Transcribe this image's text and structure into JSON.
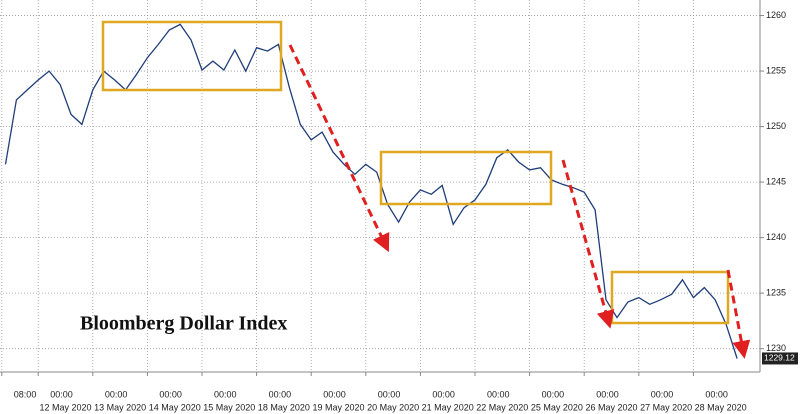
{
  "chart_data": {
    "type": "line",
    "title": "Bloomberg Dollar Index",
    "color": "#1f3d7a",
    "grid": true,
    "x": [
      -0.6,
      -0.4,
      -0.2,
      0,
      0.2,
      0.4,
      0.6,
      0.8,
      1,
      1.2,
      1.4,
      1.6,
      1.8,
      2,
      2.2,
      2.4,
      2.6,
      2.8,
      3,
      3.2,
      3.4,
      3.6,
      3.8,
      4,
      4.2,
      4.4,
      4.6,
      4.8,
      5,
      5.2,
      5.4,
      5.6,
      5.8,
      6,
      6.2,
      6.4,
      6.6,
      6.8,
      7,
      7.2,
      7.4,
      7.6,
      7.8,
      8,
      8.2,
      8.4,
      8.6,
      8.8,
      9,
      9.2,
      9.4,
      9.6,
      9.8,
      10,
      10.2,
      10.4,
      10.6,
      10.8,
      11,
      11.2,
      11.4,
      11.6,
      11.8,
      12,
      12.2,
      12.4,
      12.6,
      12.8
    ],
    "values": [
      1246.6,
      1252.4,
      1253.3,
      1254.2,
      1255.0,
      1253.8,
      1251.1,
      1250.2,
      1253.3,
      1255.0,
      1254.2,
      1253.3,
      1254.7,
      1256.2,
      1257.4,
      1258.7,
      1259.2,
      1257.8,
      1255.1,
      1255.9,
      1255.1,
      1256.9,
      1255.0,
      1257.1,
      1256.8,
      1257.4,
      1253.5,
      1250.2,
      1248.8,
      1249.5,
      1247.7,
      1246.6,
      1245.7,
      1246.6,
      1245.9,
      1243.0,
      1241.4,
      1243.2,
      1244.3,
      1243.9,
      1244.7,
      1241.2,
      1242.7,
      1243.4,
      1244.8,
      1247.2,
      1247.9,
      1246.8,
      1246.1,
      1246.3,
      1245.2,
      1244.8,
      1244.5,
      1244.1,
      1242.5,
      1234.4,
      1232.8,
      1234.2,
      1234.6,
      1234.0,
      1234.4,
      1234.9,
      1236.2,
      1234.6,
      1235.5,
      1234.4,
      1232.2,
      1229.12
    ],
    "xlim": [
      -0.7,
      13.22
    ],
    "xticks": [
      {
        "value": -0.667,
        "label": "08:00"
      },
      {
        "value": 0,
        "label": "00:00"
      },
      {
        "value": 1,
        "label": "00:00"
      },
      {
        "value": 2,
        "label": "00:00"
      },
      {
        "value": 3,
        "label": "00:00"
      },
      {
        "value": 4,
        "label": "00:00"
      },
      {
        "value": 5,
        "label": "00:00"
      },
      {
        "value": 6,
        "label": "00:00"
      },
      {
        "value": 7,
        "label": "00:00"
      },
      {
        "value": 8,
        "label": "00:00"
      },
      {
        "value": 9,
        "label": "00:00"
      },
      {
        "value": 10,
        "label": "00:00"
      },
      {
        "value": 11,
        "label": "00:00"
      },
      {
        "value": 12,
        "label": "00:00"
      }
    ],
    "x_date_labels": [
      "12 May 2020",
      "13 May 2020",
      "14 May 2020",
      "15 May 2020",
      "18 May 2020",
      "19 May 2020",
      "20 May 2020",
      "21 May 2020",
      "22 May 2020",
      "25 May 2020",
      "26 May 2020",
      "27 May 2020",
      "28 May 2020"
    ],
    "ylim": [
      1227.9,
      1261.4
    ],
    "yticks": [
      1230,
      1235,
      1240,
      1245,
      1250,
      1255,
      1260
    ]
  }
}
